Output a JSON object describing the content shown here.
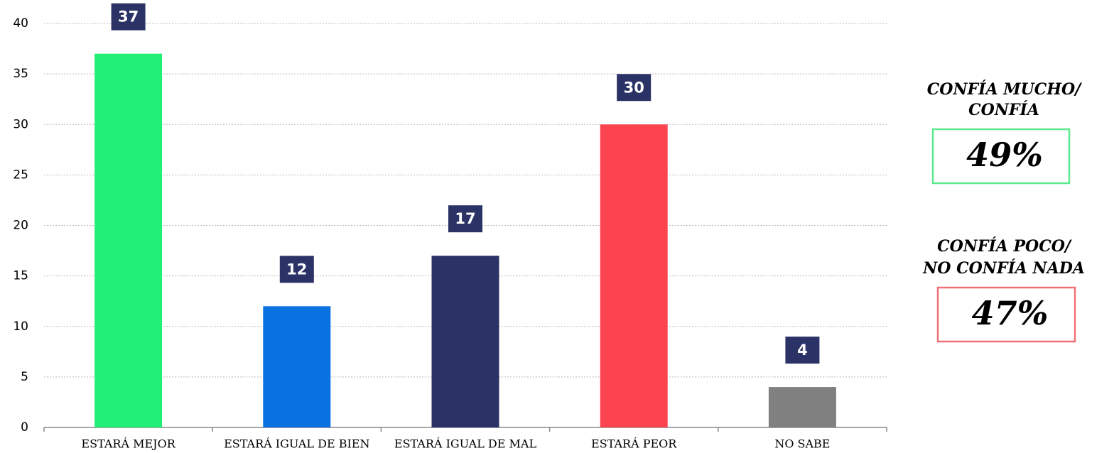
{
  "chart_data": {
    "type": "bar",
    "categories": [
      "ESTARÁ MEJOR",
      "ESTARÁ IGUAL DE BIEN",
      "ESTARÁ IGUAL DE MAL",
      "ESTARÁ PEOR",
      "NO SABE"
    ],
    "values": [
      37,
      12,
      17,
      30,
      4
    ],
    "colors": [
      "#22ef75",
      "#0a71e0",
      "#2b3266",
      "#fb4450",
      "#808080"
    ],
    "label_box_color": "#2b3266",
    "ylim": [
      0,
      40
    ],
    "yticks": [
      0,
      5,
      10,
      15,
      20,
      25,
      30,
      35,
      40
    ],
    "grid": true,
    "annotations": [
      {
        "lines": [
          "CONFÍA MUCHO/",
          "CONFÍA"
        ],
        "text": "49%",
        "color": "#5ee88f"
      },
      {
        "lines": [
          "CONFÍA POCO/",
          "NO CONFÍA NADA"
        ],
        "text": "47%",
        "color": "#f07078"
      }
    ]
  }
}
